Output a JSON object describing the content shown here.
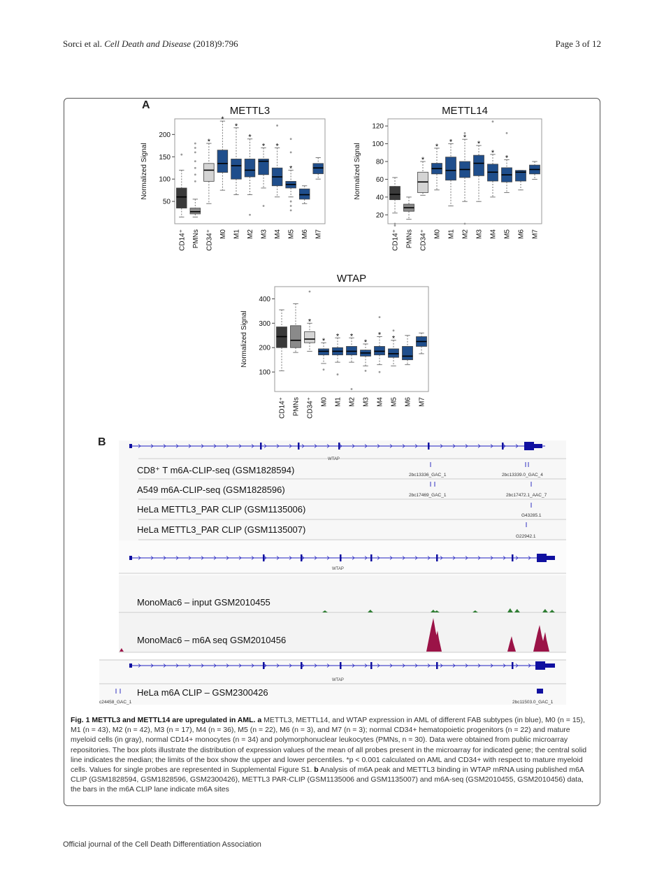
{
  "header": {
    "authors": "Sorci et al.",
    "journal": "Cell Death and Disease",
    "citation": "(2018)9:796",
    "page": "Page 3 of 12"
  },
  "panel_a_letter": "A",
  "panel_b_letter": "B",
  "chart_data": [
    {
      "type": "box",
      "title": "METTL3",
      "ylabel": "Normalized Signal",
      "ylim": [
        0,
        235
      ],
      "yticks": [
        50,
        100,
        150,
        200
      ],
      "categories": [
        "CD14⁺",
        "PMNs",
        "CD34⁺",
        "M0",
        "M1",
        "M2",
        "M3",
        "M4",
        "M5",
        "M6",
        "M7"
      ],
      "colors": [
        "#3a3a3a",
        "#8a8a8a",
        "#d4d4d4",
        "#1f4e8c",
        "#1f4e8c",
        "#1f4e8c",
        "#1f4e8c",
        "#1f4e8c",
        "#1f4e8c",
        "#1f4e8c",
        "#1f4e8c"
      ],
      "boxes": [
        {
          "lw": 15,
          "q1": 35,
          "med": 60,
          "q3": 80,
          "uw": 120,
          "out": [
            155
          ]
        },
        {
          "lw": 15,
          "q1": 22,
          "med": 27,
          "q3": 35,
          "uw": 55,
          "out": [
            95,
            110,
            125,
            140,
            160,
            170,
            180
          ]
        },
        {
          "lw": 45,
          "q1": 95,
          "med": 120,
          "q3": 135,
          "uw": 180,
          "out": []
        },
        {
          "lw": 75,
          "q1": 115,
          "med": 135,
          "q3": 165,
          "uw": 230,
          "out": []
        },
        {
          "lw": 65,
          "q1": 100,
          "med": 130,
          "q3": 145,
          "uw": 215,
          "out": []
        },
        {
          "lw": 65,
          "q1": 105,
          "med": 120,
          "q3": 145,
          "uw": 190,
          "out": [
            20
          ]
        },
        {
          "lw": 80,
          "q1": 110,
          "med": 140,
          "q3": 145,
          "uw": 170,
          "out": [
            40
          ]
        },
        {
          "lw": 60,
          "q1": 85,
          "med": 105,
          "q3": 125,
          "uw": 170,
          "out": [
            220
          ]
        },
        {
          "lw": 60,
          "q1": 80,
          "med": 88,
          "q3": 95,
          "uw": 120,
          "out": [
            30,
            40,
            50,
            160,
            190
          ]
        },
        {
          "lw": 45,
          "q1": 55,
          "med": 65,
          "q3": 78,
          "uw": 85,
          "out": []
        },
        {
          "lw": 100,
          "q1": 112,
          "med": 125,
          "q3": 135,
          "uw": 148,
          "out": []
        }
      ],
      "stars": [
        false,
        false,
        true,
        true,
        true,
        true,
        true,
        true,
        true,
        false,
        false
      ],
      "star_label": "*"
    },
    {
      "type": "box",
      "title": "METTL14",
      "ylabel": "Normalized Signal",
      "ylim": [
        10,
        128
      ],
      "yticks": [
        20,
        40,
        60,
        80,
        100,
        120
      ],
      "categories": [
        "CD14⁺",
        "PMNs",
        "CD34⁺",
        "M0",
        "M1",
        "M2",
        "M3",
        "M4",
        "M5",
        "M6",
        "M7"
      ],
      "colors": [
        "#3a3a3a",
        "#8a8a8a",
        "#d4d4d4",
        "#1f4e8c",
        "#1f4e8c",
        "#1f4e8c",
        "#1f4e8c",
        "#1f4e8c",
        "#1f4e8c",
        "#1f4e8c",
        "#1f4e8c"
      ],
      "boxes": [
        {
          "lw": 22,
          "q1": 37,
          "med": 43,
          "q3": 52,
          "uw": 62,
          "out": [
            8,
            10
          ]
        },
        {
          "lw": 15,
          "q1": 24,
          "med": 28,
          "q3": 32,
          "uw": 40,
          "out": []
        },
        {
          "lw": 42,
          "q1": 45,
          "med": 57,
          "q3": 68,
          "uw": 80,
          "out": []
        },
        {
          "lw": 48,
          "q1": 66,
          "med": 72,
          "q3": 78,
          "uw": 95,
          "out": []
        },
        {
          "lw": 30,
          "q1": 59,
          "med": 70,
          "q3": 85,
          "uw": 100,
          "out": []
        },
        {
          "lw": 35,
          "q1": 62,
          "med": 71,
          "q3": 80,
          "uw": 105,
          "out": [
            10,
            112
          ]
        },
        {
          "lw": 35,
          "q1": 64,
          "med": 78,
          "q3": 87,
          "uw": 98,
          "out": []
        },
        {
          "lw": 40,
          "q1": 58,
          "med": 68,
          "q3": 77,
          "uw": 88,
          "out": [
            125
          ]
        },
        {
          "lw": 45,
          "q1": 57,
          "med": 65,
          "q3": 73,
          "uw": 82,
          "out": [
            112
          ]
        },
        {
          "lw": 48,
          "q1": 58,
          "med": 68,
          "q3": 70,
          "uw": 70,
          "out": []
        },
        {
          "lw": 60,
          "q1": 66,
          "med": 71,
          "q3": 76,
          "uw": 80,
          "out": []
        }
      ],
      "stars": [
        false,
        false,
        true,
        true,
        true,
        true,
        true,
        true,
        true,
        false,
        false
      ],
      "star_label": "*"
    },
    {
      "type": "box",
      "title": "WTAP",
      "ylabel": "Normalized Signal",
      "ylim": [
        20,
        450
      ],
      "yticks": [
        100,
        200,
        300,
        400
      ],
      "categories": [
        "CD14⁺",
        "PMNs",
        "CD34⁺",
        "M0",
        "M1",
        "M2",
        "M3",
        "M4",
        "M5",
        "M6",
        "M7"
      ],
      "colors": [
        "#3a3a3a",
        "#8a8a8a",
        "#d4d4d4",
        "#1f4e8c",
        "#1f4e8c",
        "#1f4e8c",
        "#1f4e8c",
        "#1f4e8c",
        "#1f4e8c",
        "#1f4e8c",
        "#1f4e8c"
      ],
      "boxes": [
        {
          "lw": 105,
          "q1": 200,
          "med": 245,
          "q3": 285,
          "uw": 355,
          "out": []
        },
        {
          "lw": 180,
          "q1": 200,
          "med": 230,
          "q3": 290,
          "uw": 380,
          "out": []
        },
        {
          "lw": 185,
          "q1": 220,
          "med": 235,
          "q3": 265,
          "uw": 300,
          "out": [
            430
          ]
        },
        {
          "lw": 135,
          "q1": 170,
          "med": 185,
          "q3": 195,
          "uw": 220,
          "out": [
            110
          ]
        },
        {
          "lw": 140,
          "q1": 170,
          "med": 185,
          "q3": 200,
          "uw": 240,
          "out": [
            90
          ]
        },
        {
          "lw": 140,
          "q1": 170,
          "med": 185,
          "q3": 205,
          "uw": 240,
          "out": [
            30
          ]
        },
        {
          "lw": 125,
          "q1": 165,
          "med": 178,
          "q3": 190,
          "uw": 215,
          "out": [
            105
          ]
        },
        {
          "lw": 130,
          "q1": 170,
          "med": 185,
          "q3": 205,
          "uw": 245,
          "out": [
            100,
            325
          ]
        },
        {
          "lw": 125,
          "q1": 160,
          "med": 175,
          "q3": 195,
          "uw": 230,
          "out": [
            270
          ]
        },
        {
          "lw": 130,
          "q1": 150,
          "med": 165,
          "q3": 205,
          "uw": 250,
          "out": []
        },
        {
          "lw": 175,
          "q1": 205,
          "med": 225,
          "q3": 245,
          "uw": 260,
          "out": []
        }
      ],
      "stars": [
        false,
        false,
        true,
        true,
        true,
        true,
        true,
        true,
        true,
        false,
        false
      ],
      "star_label": "*"
    }
  ],
  "tracks": {
    "gene_label": "WTAP",
    "clip_tracks": [
      "CD8⁺ T m6A-CLIP-seq  (GSM1828594)",
      "A549 m6A-CLIP-seq  (GSM1828596)",
      "HeLa METTL3_PAR CLIP (GSM1135006)",
      "HeLa METTL3_PAR CLIP (GSM1135007)"
    ],
    "site_labels": [
      "2bc13336_GAC_1",
      "2bc13339.0_GAC_4",
      "2bc17469_GAC_1",
      "2bc17472.1_AAC_7",
      "G43285.1",
      "G22942.1"
    ],
    "seq_tracks": [
      "MonoMac6 – input GSM2010455",
      "MonoMac6 – m6A seq GSM2010456"
    ],
    "hela_track": "HeLa m6A CLIP – GSM2300426",
    "hela_left_label": "c24458_GAC_1",
    "hela_right_label": "2bc11503.0_GAC_1"
  },
  "caption": {
    "fig_label": "Fig. 1 METTL3 and METTL14 are upregulated in AML.",
    "a_label": "a",
    "a_text": "METTL3, METTL14, and WTAP expression in AML of different FAB subtypes (in blue), M0 (n = 15), M1 (n = 43), M2 (n = 42), M3 (n = 17), M4 (n = 36), M5 (n = 22), M6 (n = 3), and M7 (n = 3); normal CD34+ hematopoietic progenitors (n = 22) and mature myeloid cells (in gray), normal CD14+ monocytes (n = 34) and polymorphonuclear leukocytes (PMNs, n = 30). Data were obtained from public microarray repositories. The box plots illustrate the distribution of expression values of the mean of all probes present in the microarray for indicated gene; the central solid line indicates the median; the limits of the box show the upper and lower percentiles. *p < 0.001 calculated on AML and CD34+ with respect to mature myeloid cells. Values for single probes are represented in Supplemental Figure S1.",
    "b_label": "b",
    "b_text": "Analysis of m6A peak and METTL3 binding in WTAP mRNA using published m6A CLIP (GSM1828594, GSM1828596, GSM2300426), METTL3 PAR-CLIP (GSM1135006 and GSM1135007) and m6A-seq (GSM2010455, GSM2010456) data, the bars in the m6A CLIP lane indicate m6A sites"
  },
  "footer": "Official journal of the Cell Death Differentiation Association"
}
